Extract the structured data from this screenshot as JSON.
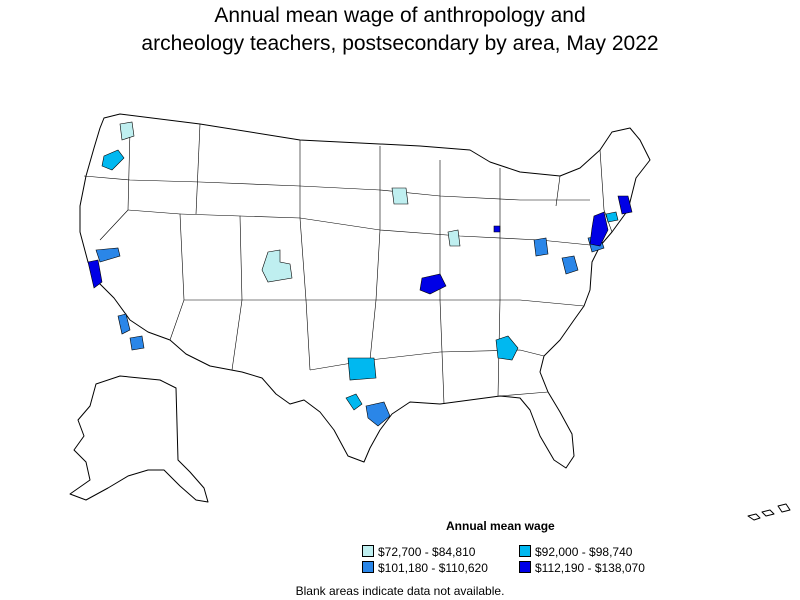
{
  "title_line1": "Annual mean wage of anthropology and",
  "title_line2": "archeology teachers, postsecondary by area, May 2022",
  "legend": {
    "title": "Annual mean wage",
    "items": [
      {
        "label": "$72,700 - $84,810",
        "color": "#bfeff0"
      },
      {
        "label": "$92,000 - $98,740",
        "color": "#00b8f0"
      },
      {
        "label": "$101,180 - $110,620",
        "color": "#2a86e8"
      },
      {
        "label": "$112,190 - $138,070",
        "color": "#0000e6"
      }
    ]
  },
  "footnote": "Blank areas indicate data not available."
}
